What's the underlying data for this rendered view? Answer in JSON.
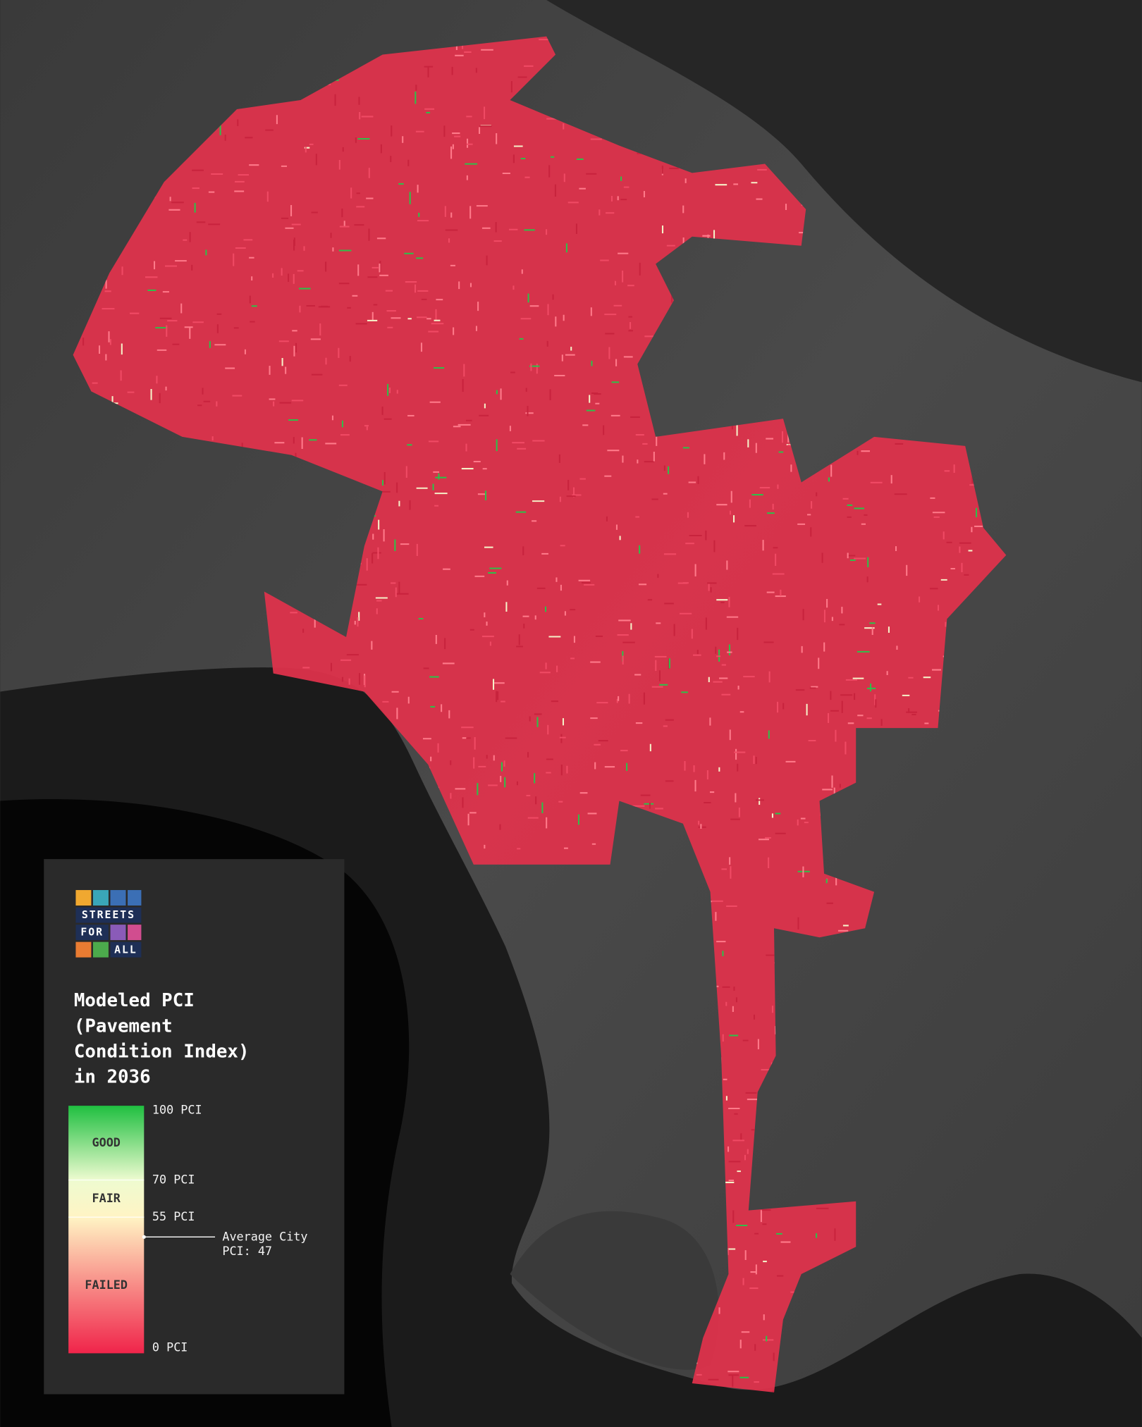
{
  "logo": {
    "rows": [
      "STREETS",
      "FOR",
      "ALL"
    ]
  },
  "legend": {
    "title": [
      "Modeled PCI",
      "(Pavement",
      "Condition Index)",
      "in 2036"
    ],
    "scale": {
      "lim": [
        0,
        100
      ],
      "ticks": [
        {
          "value": 100,
          "label": "100 PCI"
        },
        {
          "value": 70,
          "label": "70 PCI"
        },
        {
          "value": 55,
          "label": "55 PCI"
        },
        {
          "value": 0,
          "label": "0 PCI"
        }
      ],
      "tick_colors": [
        "#1fbf40",
        "#eefbd0",
        "#fff4c4",
        "#f0244a"
      ],
      "bands": [
        "GOOD",
        "FAIR",
        "FAILED"
      ],
      "average": {
        "value": 47,
        "lines": [
          "Average City",
          "PCI: 47"
        ]
      }
    }
  }
}
